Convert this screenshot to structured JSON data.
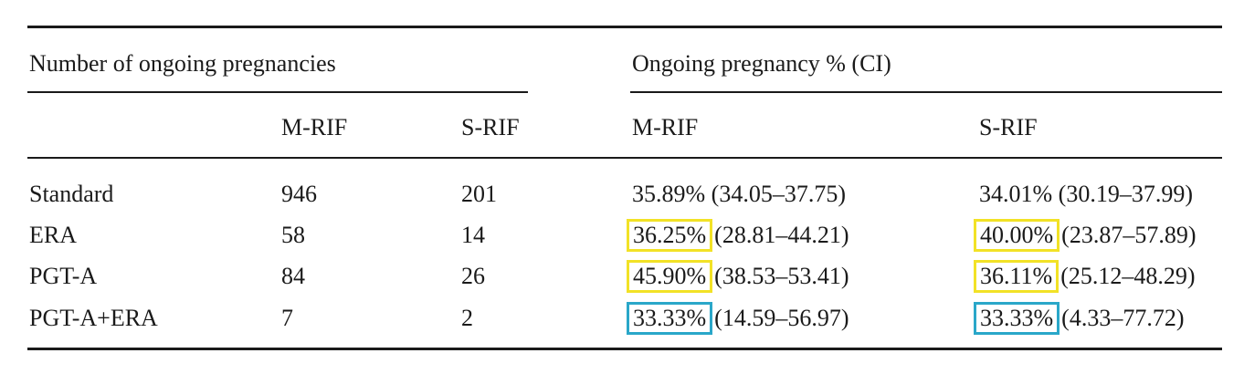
{
  "table": {
    "group_headers": {
      "count": "Number of ongoing pregnancies",
      "percent": "Ongoing pregnancy % (CI)"
    },
    "sub_headers": [
      "M-RIF",
      "S-RIF",
      "M-RIF",
      "S-RIF"
    ],
    "rows": [
      {
        "label": "Standard",
        "m_count": "946",
        "s_count": "201",
        "m_pct": "35.89%",
        "m_ci": "(34.05–37.75)",
        "s_pct": "34.01%",
        "s_ci": "(30.19–37.99)"
      },
      {
        "label": "ERA",
        "m_count": "58",
        "s_count": "14",
        "m_pct": "36.25%",
        "m_ci": "(28.81–44.21)",
        "s_pct": "40.00%",
        "s_ci": "(23.87–57.89)"
      },
      {
        "label": "PGT-A",
        "m_count": "84",
        "s_count": "26",
        "m_pct": "45.90%",
        "m_ci": "(38.53–53.41)",
        "s_pct": "36.11%",
        "s_ci": "(25.12–48.29)"
      },
      {
        "label": "PGT-A+ERA",
        "m_count": "7",
        "s_count": "2",
        "m_pct": "33.33%",
        "m_ci": "(14.59–56.97)",
        "s_pct": "33.33%",
        "s_ci": "(4.33–77.72)"
      }
    ],
    "highlight_colors": {
      "yellow": "#f2e226",
      "blue": "#2aa7c9"
    }
  }
}
